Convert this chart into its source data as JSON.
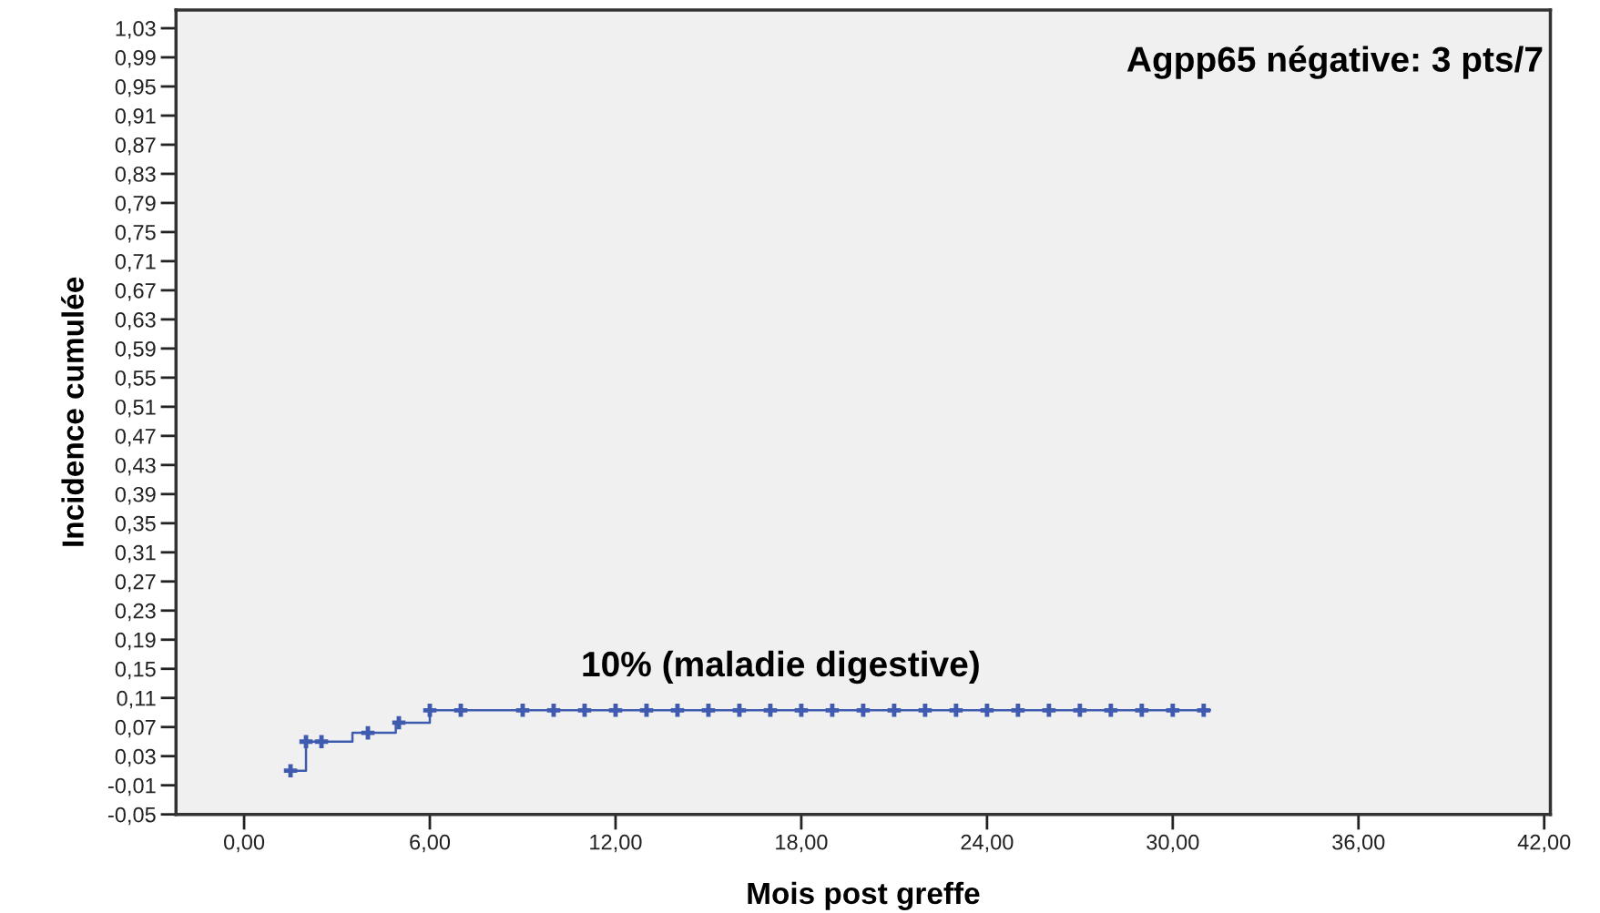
{
  "chart_data": {
    "type": "step",
    "xlabel": "Mois post greffe",
    "ylabel": "Incidence cumulée",
    "xlim": [
      -2.2,
      42.2
    ],
    "ylim": [
      -0.05,
      1.055
    ],
    "xticks": [
      {
        "value": 0,
        "label": "0,00"
      },
      {
        "value": 6,
        "label": "6,00"
      },
      {
        "value": 12,
        "label": "12,00"
      },
      {
        "value": 18,
        "label": "18,00"
      },
      {
        "value": 24,
        "label": "24,00"
      },
      {
        "value": 30,
        "label": "30,00"
      },
      {
        "value": 36,
        "label": "36,00"
      },
      {
        "value": 42,
        "label": "42,00"
      }
    ],
    "yticks": [
      {
        "value": -0.05,
        "label": "-0,05"
      },
      {
        "value": -0.01,
        "label": "-0,01"
      },
      {
        "value": 0.03,
        "label": "0,03"
      },
      {
        "value": 0.07,
        "label": "0,07"
      },
      {
        "value": 0.11,
        "label": "0,11"
      },
      {
        "value": 0.15,
        "label": "0,15"
      },
      {
        "value": 0.19,
        "label": "0,19"
      },
      {
        "value": 0.23,
        "label": "0,23"
      },
      {
        "value": 0.27,
        "label": "0,27"
      },
      {
        "value": 0.31,
        "label": "0,31"
      },
      {
        "value": 0.35,
        "label": "0,35"
      },
      {
        "value": 0.39,
        "label": "0,39"
      },
      {
        "value": 0.43,
        "label": "0,43"
      },
      {
        "value": 0.47,
        "label": "0,47"
      },
      {
        "value": 0.51,
        "label": "0,51"
      },
      {
        "value": 0.55,
        "label": "0,55"
      },
      {
        "value": 0.59,
        "label": "0,59"
      },
      {
        "value": 0.63,
        "label": "0,63"
      },
      {
        "value": 0.67,
        "label": "0,67"
      },
      {
        "value": 0.71,
        "label": "0,71"
      },
      {
        "value": 0.75,
        "label": "0,75"
      },
      {
        "value": 0.79,
        "label": "0,79"
      },
      {
        "value": 0.83,
        "label": "0,83"
      },
      {
        "value": 0.87,
        "label": "0,87"
      },
      {
        "value": 0.91,
        "label": "0,91"
      },
      {
        "value": 0.95,
        "label": "0,95"
      },
      {
        "value": 0.99,
        "label": "0,99"
      },
      {
        "value": 1.03,
        "label": "1,03"
      }
    ],
    "grid": false,
    "legend": false,
    "series": [
      {
        "color": "#3f5bb0",
        "marker": "none",
        "line_style": "solid",
        "x": [
          1.5,
          2.0,
          3.5,
          4.9,
          6.0,
          31.2
        ],
        "values": [
          0.01,
          0.05,
          0.062,
          0.076,
          0.093,
          0.093
        ]
      },
      {
        "type": "scatter",
        "color": "#3f5bb0",
        "marker": "cross",
        "x": [
          1.5,
          2.0,
          2.5,
          4.0,
          5.0,
          6,
          7,
          9,
          10,
          11,
          12,
          13,
          14,
          15,
          16,
          17,
          18,
          19,
          20,
          21,
          22,
          23,
          24,
          25,
          26,
          27,
          28,
          29,
          30,
          31
        ],
        "values": [
          0.01,
          0.05,
          0.05,
          0.062,
          0.076,
          0.093,
          0.093,
          0.093,
          0.093,
          0.093,
          0.093,
          0.093,
          0.093,
          0.093,
          0.093,
          0.093,
          0.093,
          0.093,
          0.093,
          0.093,
          0.093,
          0.093,
          0.093,
          0.093,
          0.093,
          0.093,
          0.093,
          0.093,
          0.093,
          0.093
        ]
      }
    ],
    "annotations": [
      "Agpp65 négative: 3 pts/7",
      "10% (maladie digestive)"
    ]
  }
}
